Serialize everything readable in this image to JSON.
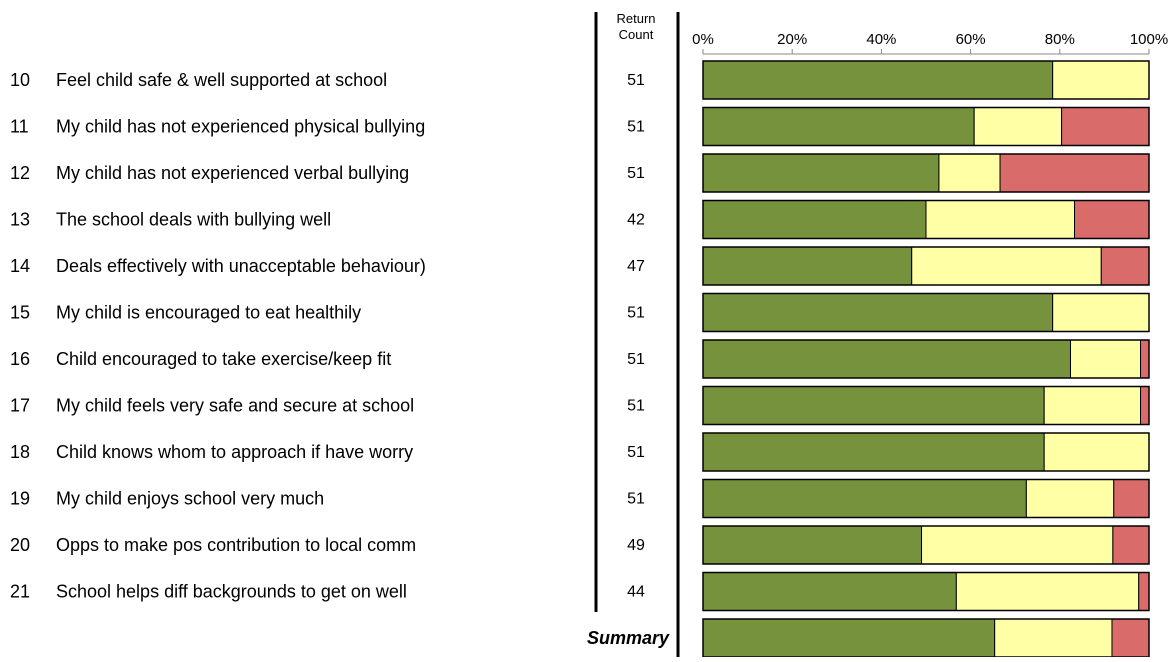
{
  "header": {
    "return_count_line1": "Return",
    "return_count_line2": "Count"
  },
  "chart_data": {
    "type": "bar",
    "orientation": "horizontal",
    "stacked": true,
    "xlim": [
      0,
      100
    ],
    "x_ticks": [
      "0%",
      "20%",
      "40%",
      "60%",
      "80%",
      "100%"
    ],
    "grid": false,
    "colors": {
      "green": "#76923c",
      "yellow": "#ffffa5",
      "red": "#d96b6b"
    },
    "rows": [
      {
        "num": "10",
        "label": "Feel child safe & well supported at school",
        "count": "51",
        "values": [
          78.4,
          21.6,
          0
        ]
      },
      {
        "num": "11",
        "label": "My child has not experienced physical bullying",
        "count": "51",
        "values": [
          60.8,
          19.6,
          19.6
        ]
      },
      {
        "num": "12",
        "label": "My child has not experienced verbal bullying",
        "count": "51",
        "values": [
          52.9,
          13.7,
          33.4
        ]
      },
      {
        "num": "13",
        "label": "The school deals with bullying well",
        "count": "42",
        "values": [
          50.0,
          33.3,
          16.7
        ]
      },
      {
        "num": "14",
        "label": "Deals effectively with unacceptable behaviour)",
        "count": "47",
        "values": [
          46.8,
          42.5,
          10.7
        ]
      },
      {
        "num": "15",
        "label": "My child is encouraged to eat healthily",
        "count": "51",
        "values": [
          78.4,
          21.6,
          0
        ]
      },
      {
        "num": "16",
        "label": "Child encouraged to take exercise/keep fit",
        "count": "51",
        "values": [
          82.4,
          15.7,
          1.9
        ]
      },
      {
        "num": "17",
        "label": "My child feels very safe and secure at school",
        "count": "51",
        "values": [
          76.5,
          21.6,
          1.9
        ]
      },
      {
        "num": "18",
        "label": "Child knows whom to approach if have worry",
        "count": "51",
        "values": [
          76.5,
          23.5,
          0
        ]
      },
      {
        "num": "19",
        "label": "My child enjoys school very much",
        "count": "51",
        "values": [
          72.5,
          19.6,
          7.9
        ]
      },
      {
        "num": "20",
        "label": "Opps to make pos contribution to local comm",
        "count": "49",
        "values": [
          49.0,
          42.9,
          8.1
        ]
      },
      {
        "num": "21",
        "label": "School helps diff backgrounds to get on well",
        "count": "44",
        "values": [
          56.8,
          40.9,
          2.3
        ]
      }
    ],
    "summary": {
      "label": "Summary",
      "values": [
        65.4,
        26.3,
        8.3
      ]
    }
  }
}
